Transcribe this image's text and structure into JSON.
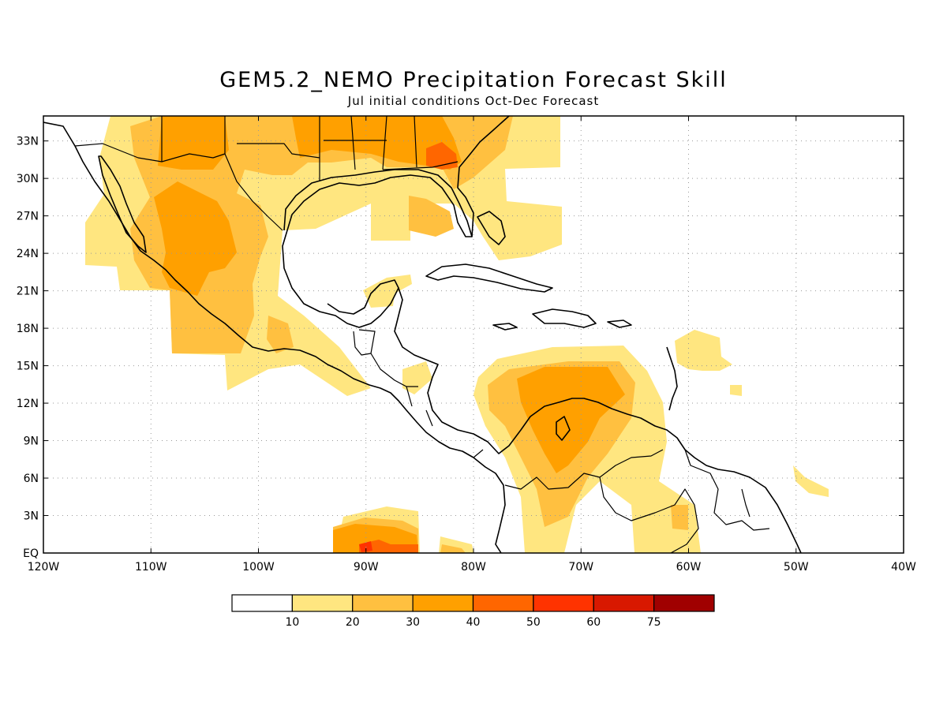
{
  "map": {
    "title": "GEM5.2_NEMO Precipitation Forecast Skill",
    "subtitle": "Jul initial conditions  Oct-Dec Forecast",
    "lon_range": [
      -120,
      -40
    ],
    "lat_range": [
      0,
      35
    ],
    "lat_ticks": [
      {
        "value": 33,
        "label": "33N"
      },
      {
        "value": 30,
        "label": "30N"
      },
      {
        "value": 27,
        "label": "27N"
      },
      {
        "value": 24,
        "label": "24N"
      },
      {
        "value": 21,
        "label": "21N"
      },
      {
        "value": 18,
        "label": "18N"
      },
      {
        "value": 15,
        "label": "15N"
      },
      {
        "value": 12,
        "label": "12N"
      },
      {
        "value": 9,
        "label": "9N"
      },
      {
        "value": 6,
        "label": "6N"
      },
      {
        "value": 3,
        "label": "3N"
      },
      {
        "value": 0,
        "label": "EQ"
      }
    ],
    "lon_ticks": [
      {
        "value": -120,
        "label": "120W"
      },
      {
        "value": -110,
        "label": "110W"
      },
      {
        "value": -100,
        "label": "100W"
      },
      {
        "value": -90,
        "label": "90W"
      },
      {
        "value": -80,
        "label": "80W"
      },
      {
        "value": -70,
        "label": "70W"
      },
      {
        "value": -60,
        "label": "60W"
      },
      {
        "value": -50,
        "label": "50W"
      },
      {
        "value": -40,
        "label": "40W"
      }
    ],
    "grid": "dotted",
    "colors": {
      "level_10": "#ffe680",
      "level_20": "#ffc040",
      "level_30": "#ffa000",
      "level_40": "#ff6600",
      "level_50": "#ff3300",
      "level_60": "#d81800",
      "level_75": "#a00000"
    }
  },
  "legend": {
    "boxes": [
      "#ffffff",
      "#ffe680",
      "#ffc040",
      "#ffa000",
      "#ff6600",
      "#ff3300",
      "#d81800",
      "#a00000"
    ],
    "labels": [
      "10",
      "20",
      "30",
      "40",
      "50",
      "60",
      "75"
    ]
  }
}
